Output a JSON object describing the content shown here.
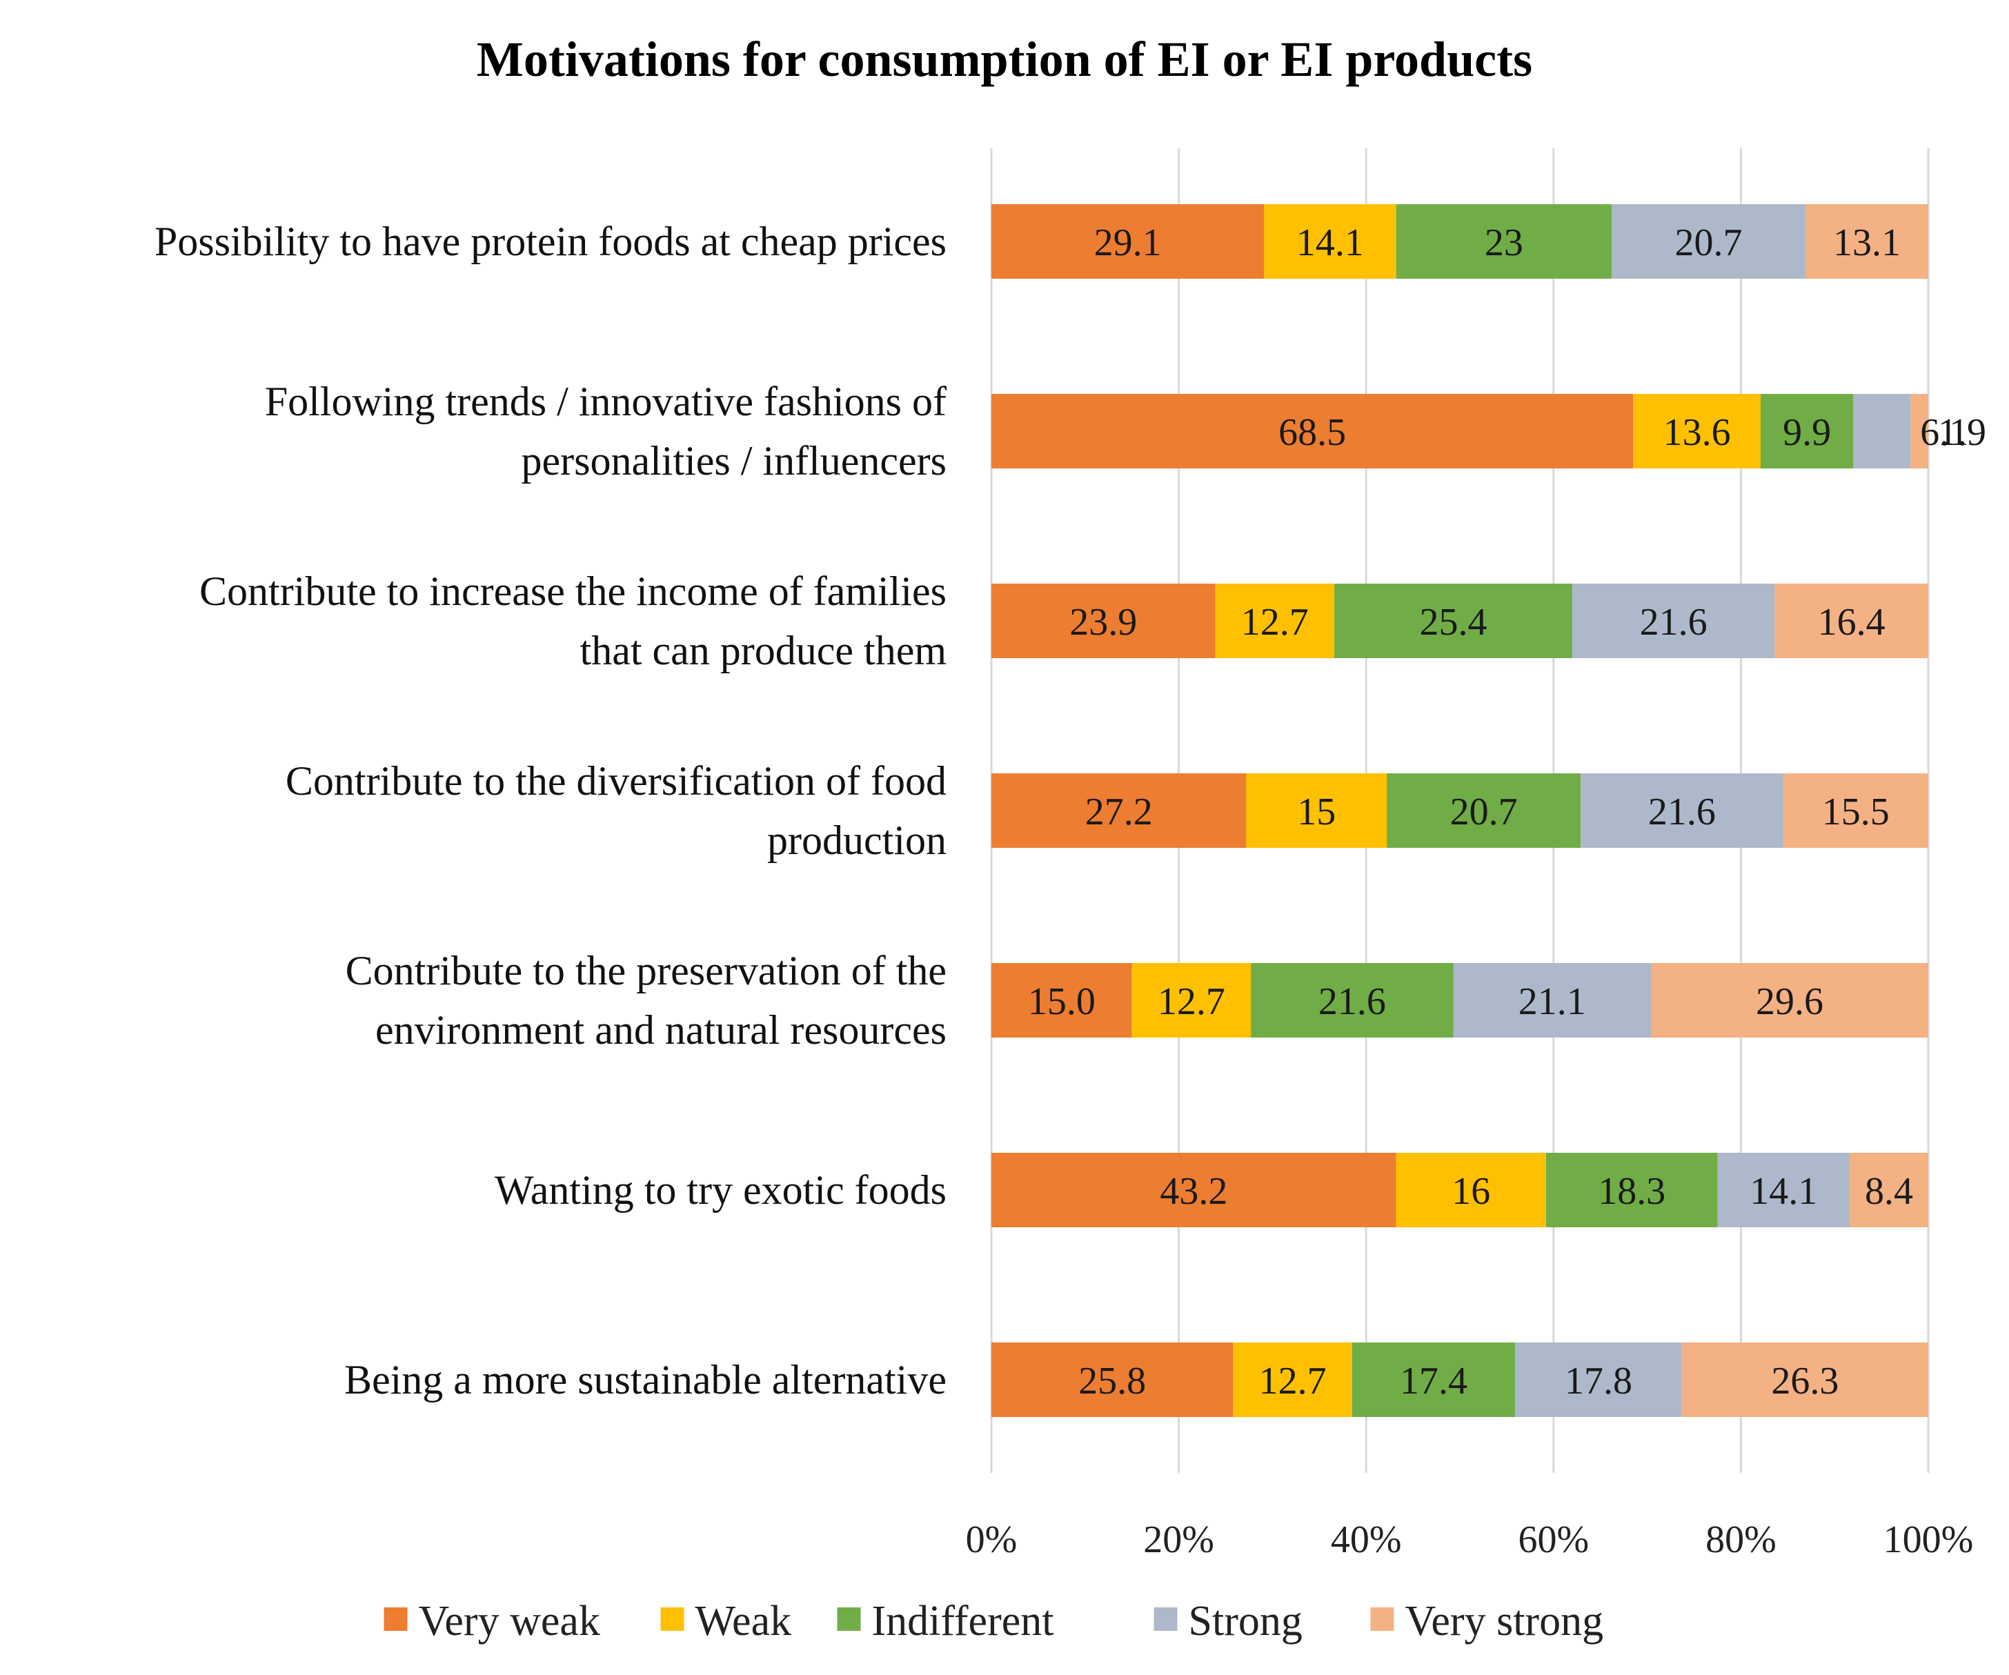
{
  "chart_data": {
    "type": "bar",
    "orientation": "horizontal",
    "stacked": "100%",
    "title": "Motivations for consumption of EI or EI products",
    "xlabel": "",
    "ylabel": "",
    "xlim": [
      0,
      100
    ],
    "x_ticks": [
      "0%",
      "20%",
      "40%",
      "60%",
      "80%",
      "100%"
    ],
    "grid": true,
    "legend_position": "bottom",
    "categories": [
      [
        "Possibility to have protein foods at cheap prices"
      ],
      [
        "Following trends / innovative fashions of",
        "personalities / influencers"
      ],
      [
        "Contribute to increase the income of families",
        "that can produce them"
      ],
      [
        "Contribute to the diversification of food",
        "production"
      ],
      [
        "Contribute to the preservation of the",
        "environment and natural resources"
      ],
      [
        "Wanting to try exotic foods"
      ],
      [
        "Being a more sustainable alternative"
      ]
    ],
    "series": [
      {
        "name": "Very weak",
        "color": "#ED7D31",
        "values": [
          29.1,
          68.5,
          23.9,
          27.2,
          15.0,
          43.2,
          25.8
        ],
        "labels": [
          "29.1",
          "68.5",
          "23.9",
          "27.2",
          "15.0",
          "43.2",
          "25.8"
        ]
      },
      {
        "name": "Weak",
        "color": "#FFC000",
        "values": [
          14.1,
          13.6,
          12.7,
          15,
          12.7,
          16,
          12.7
        ],
        "labels": [
          "14.1",
          "13.6",
          "12.7",
          "15",
          "12.7",
          "16",
          "12.7"
        ]
      },
      {
        "name": "Indifferent",
        "color": "#70AD47",
        "values": [
          23,
          9.9,
          25.4,
          20.7,
          21.6,
          18.3,
          17.4
        ],
        "labels": [
          "23",
          "9.9",
          "25.4",
          "20.7",
          "21.6",
          "18.3",
          "17.4"
        ]
      },
      {
        "name": "Strong",
        "color": "#ADB9CA",
        "values": [
          20.7,
          6.1,
          21.6,
          21.6,
          21.1,
          14.1,
          17.8
        ],
        "labels": [
          "20.7",
          "6.1",
          "21.6",
          "21.6",
          "21.1",
          "14.1",
          "17.8"
        ]
      },
      {
        "name": "Very strong",
        "color": "#F4B183",
        "values": [
          13.1,
          1.9,
          16.4,
          15.5,
          29.6,
          8.4,
          26.3
        ],
        "labels": [
          "13.1",
          "1.9",
          "16.4",
          "15.5",
          "29.6",
          "8.4",
          "26.3"
        ]
      }
    ]
  }
}
